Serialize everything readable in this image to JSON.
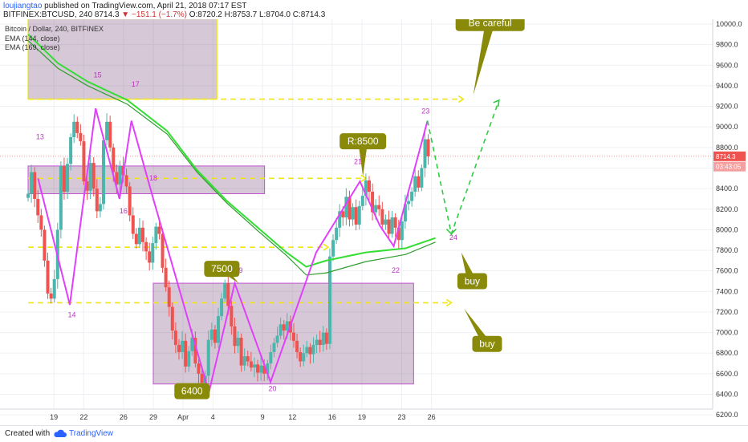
{
  "header": {
    "author": "loujiangtao",
    "published": "published on TradingView.com, April 21, 2018 07:17 EST",
    "symbol": "BITFINEX:BTCUSD, 240",
    "last": "8714.3",
    "change": "−151.1 (−1.7%)",
    "ohlc": "O:8720.2 H:8753.7 L:8704.0 C:8714.3"
  },
  "legend": {
    "title": "Bitcoin / Dollar, 240, BITFINEX",
    "ema1": "EMA (144, close)",
    "ema2": "EMA (169, close)"
  },
  "footer": {
    "created": "Created with",
    "brand": "TradingView"
  },
  "colors": {
    "up": "#4db6ac",
    "down": "#ef5350",
    "wave": "#e040fb",
    "ema_bright": "#33dd33",
    "ema_dark": "#2e9d2e",
    "dash_yellow": "#f2e60a",
    "box_fill": "#6d3a70",
    "callout": "#8a8a0a",
    "callout_text": "#ffffff"
  },
  "chart_data": {
    "type": "line",
    "instrument": "Bitcoin / Dollar, 240, BITFINEX",
    "y_ticks": [
      "10000.0",
      "9800.0",
      "9600.0",
      "9400.0",
      "9200.0",
      "9000.0",
      "8800.0",
      "8600.0",
      "8400.0",
      "8200.0",
      "8000.0",
      "7800.0",
      "7600.0",
      "7400.0",
      "7200.0",
      "7000.0",
      "6800.0",
      "6600.0",
      "6400.0",
      "6200.0"
    ],
    "x_ticks": [
      {
        "label": "19",
        "t": 2.6
      },
      {
        "label": "22",
        "t": 5.6
      },
      {
        "label": "26",
        "t": 9.6
      },
      {
        "label": "29",
        "t": 12.6
      },
      {
        "label": "Apr",
        "t": 15.6
      },
      {
        "label": "4",
        "t": 18.6
      },
      {
        "label": "9",
        "t": 23.6
      },
      {
        "label": "12",
        "t": 26.6
      },
      {
        "label": "16",
        "t": 30.6
      },
      {
        "label": "19",
        "t": 33.6
      },
      {
        "label": "23",
        "t": 37.6
      },
      {
        "label": "26",
        "t": 40.6
      }
    ],
    "last_price": "8714.3",
    "price_tags": [
      {
        "value": 8714.3,
        "label": "8714.3"
      },
      {
        "value": 8614,
        "label": "03:43:05"
      }
    ],
    "wave_points": [
      {
        "label": "13",
        "t": 1.0,
        "v": 8500
      },
      {
        "label": "14",
        "t": 4.2,
        "v": 7270
      },
      {
        "label": "15",
        "t": 6.8,
        "v": 9180
      },
      {
        "label": "16",
        "t": 9.2,
        "v": 8300
      },
      {
        "label": "17",
        "t": 10.4,
        "v": 9060
      },
      {
        "label": "18",
        "t": 12.6,
        "v": 8300
      },
      {
        "label": "",
        "t": 18.2,
        "v": 6420
      },
      {
        "label": "19",
        "t": 20.8,
        "v": 7480
      },
      {
        "label": "20",
        "t": 24.4,
        "v": 6520
      },
      {
        "label": "",
        "t": 29.0,
        "v": 7780
      },
      {
        "label": "21",
        "t": 33.4,
        "v": 8470
      },
      {
        "label": "",
        "t": 35.4,
        "v": 8040
      },
      {
        "label": "22",
        "t": 36.8,
        "v": 7840
      },
      {
        "label": "23",
        "t": 40.2,
        "v": 9060
      }
    ],
    "wave_labels": [
      {
        "label": "13",
        "t": 1.2,
        "v": 8880
      },
      {
        "label": "14",
        "t": 4.4,
        "v": 7150
      },
      {
        "label": "15",
        "t": 7.0,
        "v": 9480
      },
      {
        "label": "16",
        "t": 9.6,
        "v": 8160
      },
      {
        "label": "17",
        "t": 10.8,
        "v": 9390
      },
      {
        "label": "18",
        "t": 12.6,
        "v": 8480
      },
      {
        "label": "19",
        "t": 21.2,
        "v": 7580
      },
      {
        "label": "20",
        "t": 24.6,
        "v": 6430
      },
      {
        "label": "21",
        "t": 33.2,
        "v": 8640
      },
      {
        "label": "22",
        "t": 37.0,
        "v": 7580
      },
      {
        "label": "23",
        "t": 40.0,
        "v": 9130
      },
      {
        "label": "24",
        "t": 42.8,
        "v": 7900
      }
    ],
    "projection": [
      {
        "t": 40.2,
        "v": 9060
      },
      {
        "t": 42.6,
        "v": 7960
      },
      {
        "t": 47.4,
        "v": 9260
      }
    ],
    "ema_144": [
      {
        "t": 0,
        "v": 9900
      },
      {
        "t": 3,
        "v": 9620
      },
      {
        "t": 6,
        "v": 9440
      },
      {
        "t": 10,
        "v": 9260
      },
      {
        "t": 14,
        "v": 8960
      },
      {
        "t": 17,
        "v": 8580
      },
      {
        "t": 20,
        "v": 8280
      },
      {
        "t": 23,
        "v": 8030
      },
      {
        "t": 26,
        "v": 7780
      },
      {
        "t": 28,
        "v": 7640
      },
      {
        "t": 30,
        "v": 7700
      },
      {
        "t": 34,
        "v": 7780
      },
      {
        "t": 38,
        "v": 7820
      },
      {
        "t": 41,
        "v": 7920
      }
    ],
    "ema_169": [
      {
        "t": 0,
        "v": 9840
      },
      {
        "t": 3,
        "v": 9570
      },
      {
        "t": 6,
        "v": 9400
      },
      {
        "t": 10,
        "v": 9220
      },
      {
        "t": 14,
        "v": 8930
      },
      {
        "t": 17,
        "v": 8560
      },
      {
        "t": 20,
        "v": 8260
      },
      {
        "t": 23,
        "v": 8000
      },
      {
        "t": 26,
        "v": 7750
      },
      {
        "t": 28,
        "v": 7560
      },
      {
        "t": 30,
        "v": 7580
      },
      {
        "t": 34,
        "v": 7690
      },
      {
        "t": 38,
        "v": 7760
      },
      {
        "t": 41,
        "v": 7880
      }
    ],
    "hlines": [
      {
        "v": 9270,
        "t0": 0,
        "t1": 43.8
      },
      {
        "v": 8500,
        "t0": 0,
        "t1": 34.0
      },
      {
        "v": 7830,
        "t0": 0,
        "t1": 30.2
      },
      {
        "v": 7290,
        "t0": 0,
        "t1": 42.6
      }
    ],
    "boxes": [
      {
        "t0": 0,
        "t1": 19.0,
        "v0": 9270,
        "v1": 10050
      },
      {
        "t0": 0,
        "t1": 23.8,
        "v0": 8350,
        "v1": 8620
      },
      {
        "t0": 12.6,
        "t1": 38.8,
        "v0": 6500,
        "v1": 7480
      }
    ],
    "callouts": [
      {
        "text": "R:8500",
        "t": 33.7,
        "v": 8860,
        "pt": 33.7,
        "pv": 8520
      },
      {
        "text": "7500",
        "t": 19.5,
        "v": 7620,
        "pt": 21.2,
        "pv": 7480
      },
      {
        "text": "6400",
        "t": 16.5,
        "v": 6430,
        "pt": 18.5,
        "pv": 6430
      },
      {
        "text": "Be careful",
        "t": 46.5,
        "v": 10010,
        "pt": 44.8,
        "pv": 9310
      },
      {
        "text": "buy",
        "t": 44.7,
        "v": 7500,
        "pt": 43.6,
        "pv": 7780
      },
      {
        "text": "buy",
        "t": 46.2,
        "v": 6890,
        "pt": 43.9,
        "pv": 7230
      }
    ],
    "candles_close": [
      8350,
      8560,
      8300,
      8140,
      8000,
      7700,
      7380,
      7330,
      7520,
      8000,
      8620,
      8370,
      8640,
      8900,
      9050,
      8940,
      8860,
      8470,
      8380,
      8650,
      8400,
      8180,
      8250,
      8870,
      9050,
      8800,
      8560,
      8440,
      8620,
      8530,
      8420,
      8140,
      7960,
      7860,
      8020,
      7880,
      7790,
      7680,
      7870,
      8030,
      7960,
      7630,
      7440,
      7250,
      7020,
      6880,
      6810,
      6920,
      6670,
      6820,
      6950,
      6700,
      6600,
      6510,
      6580,
      6930,
      7030,
      6900,
      7160,
      7330,
      7480,
      7260,
      7060,
      6870,
      6950,
      6680,
      6770,
      6720,
      6660,
      6690,
      6610,
      6680,
      6600,
      6700,
      6810,
      6900,
      6970,
      7080,
      7020,
      7110,
      7000,
      6920,
      6810,
      6720,
      6800,
      6860,
      6790,
      6880,
      6930,
      6880,
      7000,
      6890,
      7740,
      7900,
      8020,
      8180,
      8120,
      8320,
      8100,
      8220,
      8050,
      8230,
      8330,
      8480,
      8370,
      8170,
      8240,
      8200,
      8050,
      8100,
      7960,
      8120,
      8020,
      7900,
      8080,
      8250,
      8280,
      8370,
      8520,
      8410,
      8600,
      8880,
      8714
    ]
  }
}
